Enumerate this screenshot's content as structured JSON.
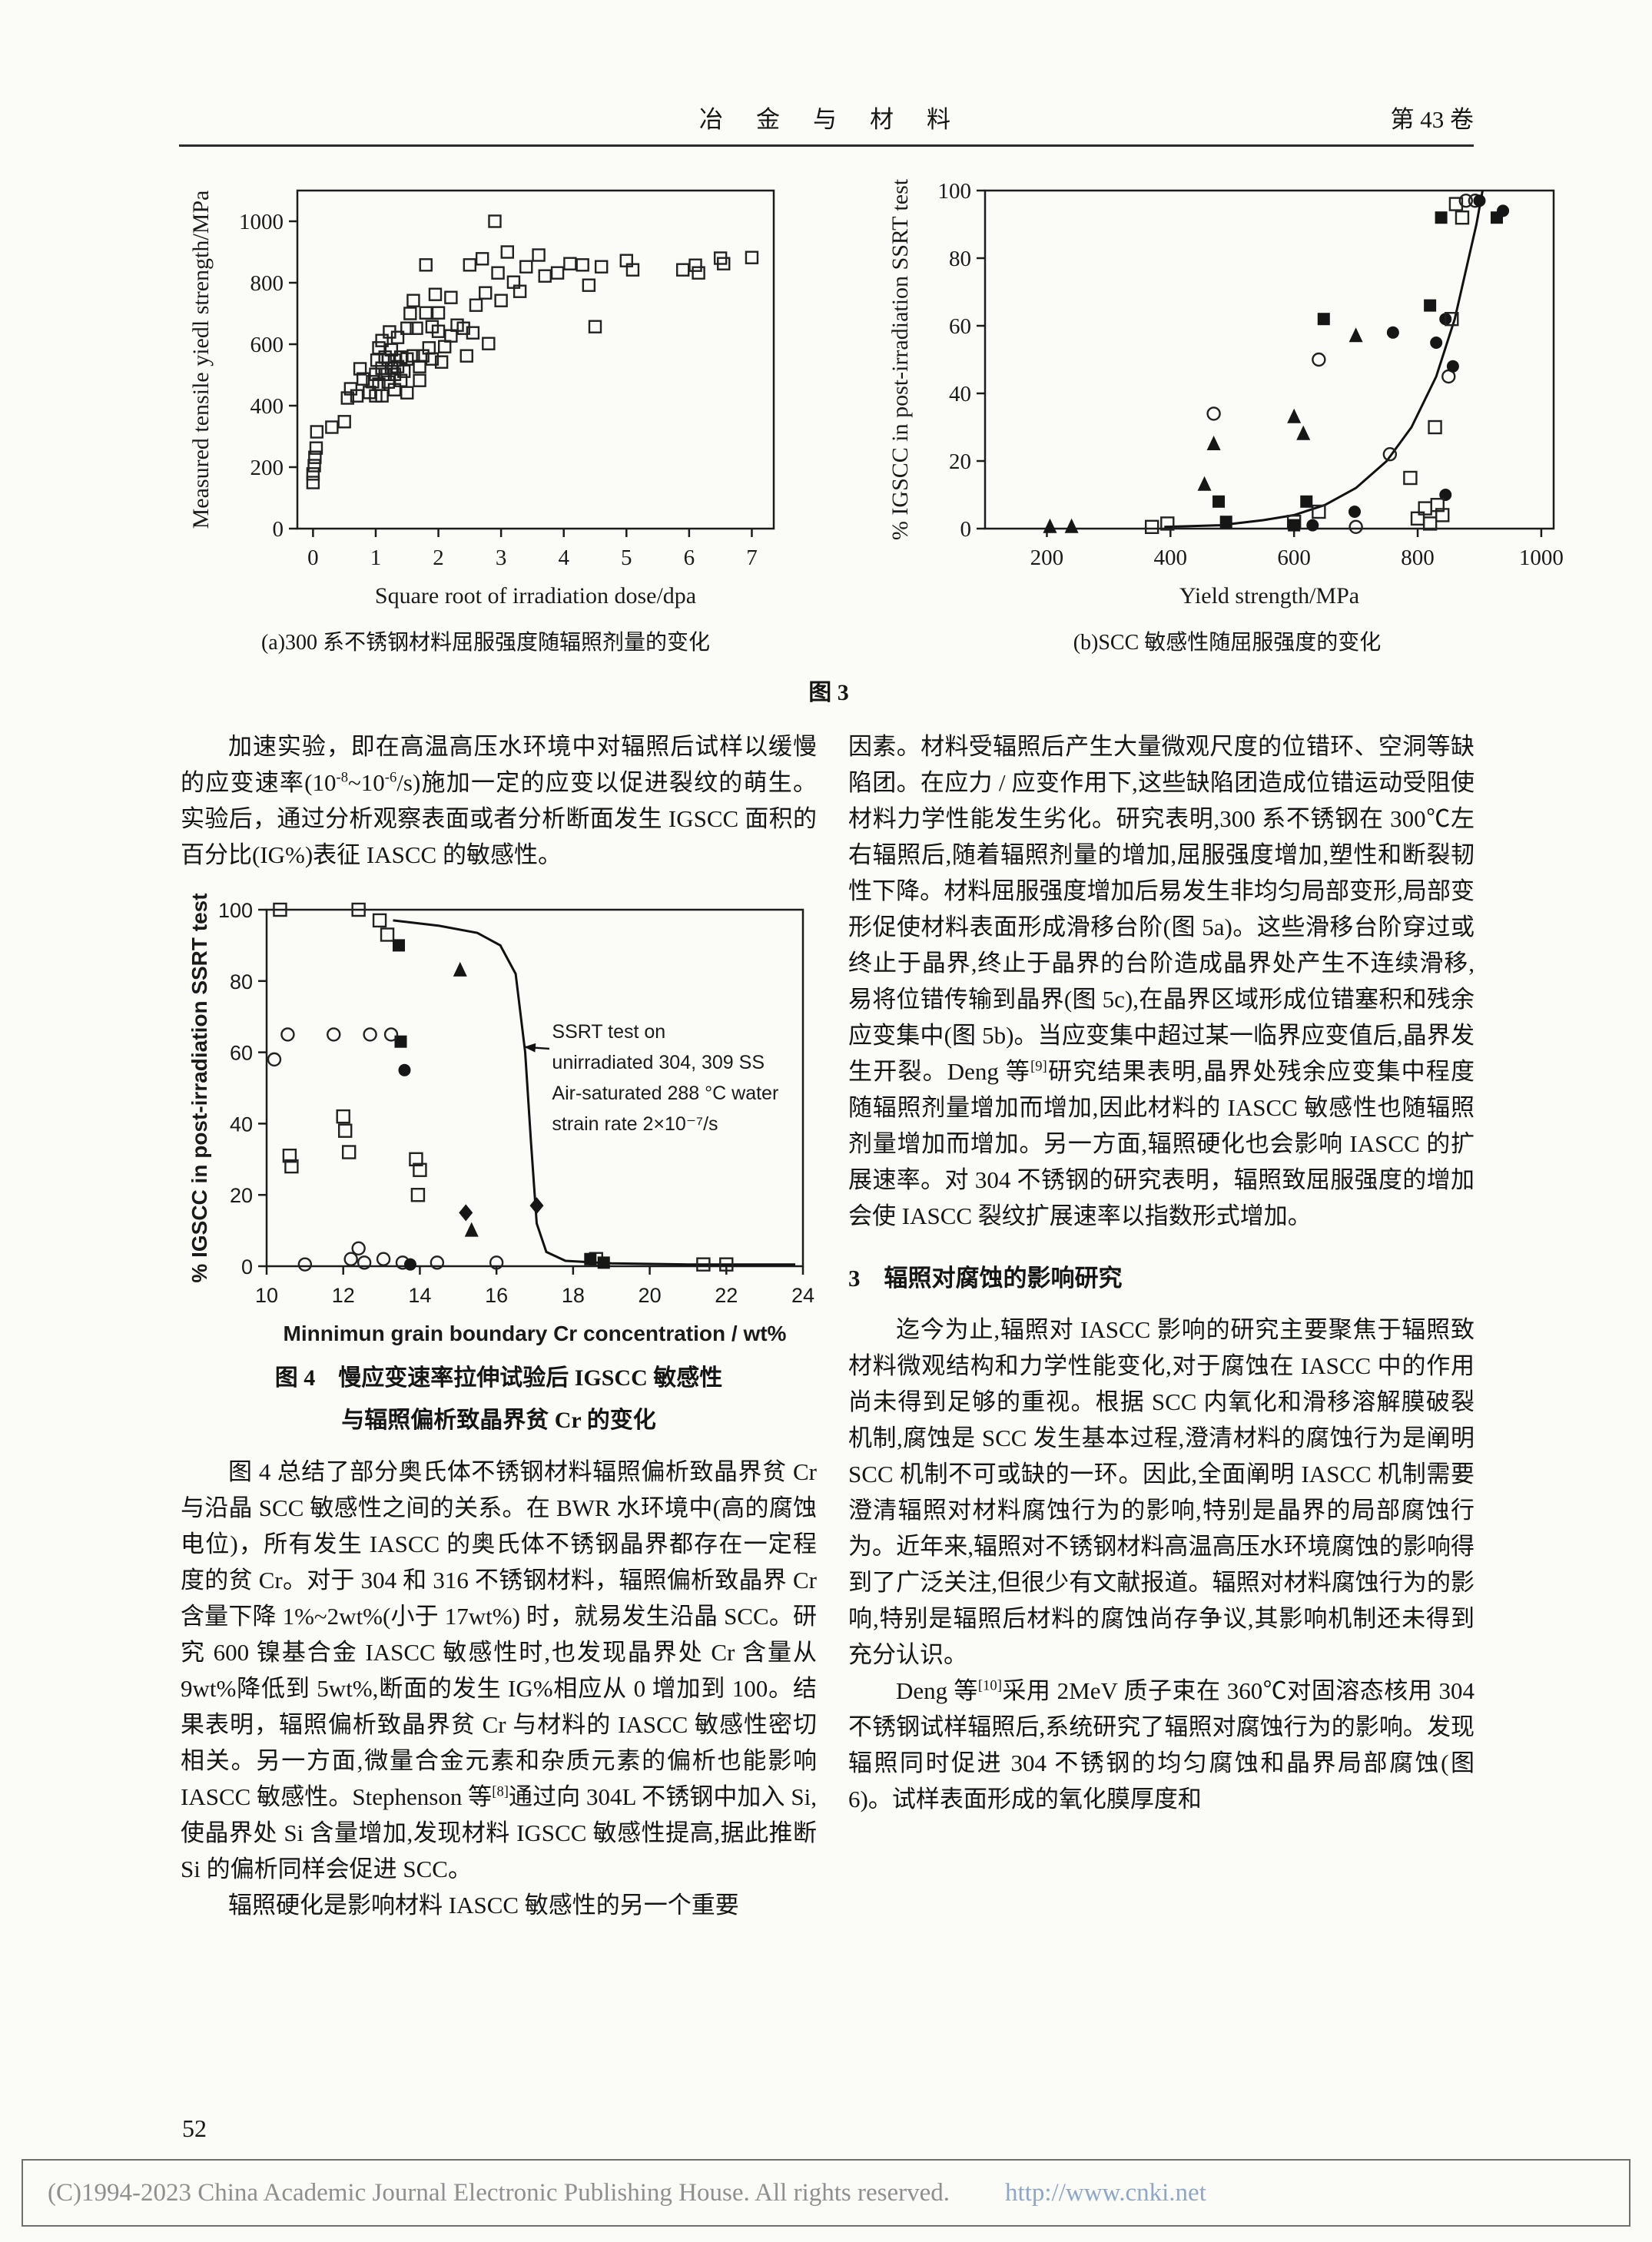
{
  "header": {
    "journal": "冶　金　与　材　料",
    "volume": "第 43 卷"
  },
  "figure3": {
    "caption_a": "(a)300 系不锈钢材料屈服强度随辐照剂量的变化",
    "caption_b": "(b)SCC 敏感性随屈服强度的变化",
    "label": "图 3"
  },
  "figure4": {
    "caption_line1": "图 4　慢应变速率拉伸试验后 IGSCC 敏感性",
    "caption_line2": "与辐照偏析致晶界贫 Cr 的变化"
  },
  "left_column": {
    "para1": "加速实验，即在高温高压水环境中对辐照后试样以缓慢的应变速率(10^{-8}~10^{-6}/s)施加一定的应变以促进裂纹的萌生。实验后，通过分析观察表面或者分析断面发生 IGSCC 面积的百分比(IG%)表征 IASCC 的敏感性。",
    "para2": "图 4 总结了部分奥氏体不锈钢材料辐照偏析致晶界贫 Cr 与沿晶 SCC 敏感性之间的关系。在 BWR 水环境中(高的腐蚀电位)，所有发生 IASCC 的奥氏体不锈钢晶界都存在一定程度的贫 Cr。对于 304 和 316 不锈钢材料，辐照偏析致晶界 Cr 含量下降 1%~2wt%(小于 17wt%) 时，就易发生沿晶 SCC。研究 600 镍基合金 IASCC 敏感性时,也发现晶界处 Cr 含量从 9wt%降低到 5wt%,断面的发生 IG%相应从 0 增加到 100。结果表明，辐照偏析致晶界贫 Cr 与材料的 IASCC 敏感性密切相关。另一方面,微量合金元素和杂质元素的偏析也能影响 IASCC 敏感性。Stephenson 等^{[8]}通过向 304L 不锈钢中加入 Si,使晶界处 Si 含量增加,发现材料 IGSCC 敏感性提高,据此推断 Si 的偏析同样会促进 SCC。",
    "para3": "辐照硬化是影响材料 IASCC 敏感性的另一个重要"
  },
  "right_column": {
    "para1": "因素。材料受辐照后产生大量微观尺度的位错环、空洞等缺陷团。在应力 / 应变作用下,这些缺陷团造成位错运动受阻使材料力学性能发生劣化。研究表明,300 系不锈钢在 300℃左右辐照后,随着辐照剂量的增加,屈服强度增加,塑性和断裂韧性下降。材料屈服强度增加后易发生非均匀局部变形,局部变形促使材料表面形成滑移台阶(图 5a)。这些滑移台阶穿过或终止于晶界,终止于晶界的台阶造成晶界处产生不连续滑移,易将位错传输到晶界(图 5c),在晶界区域形成位错塞积和残余应变集中(图 5b)。当应变集中超过某一临界应变值后,晶界发生开裂。Deng 等^{[9]}研究结果表明,晶界处残余应变集中程度随辐照剂量增加而增加,因此材料的 IASCC 敏感性也随辐照剂量增加而增加。另一方面,辐照硬化也会影响 IASCC 的扩展速率。对 304 不锈钢的研究表明，辐照致屈服强度的增加会使 IASCC 裂纹扩展速率以指数形式增加。",
    "section3_heading": "3　辐照对腐蚀的影响研究",
    "para2": "迄今为止,辐照对 IASCC 影响的研究主要聚焦于辐照致材料微观结构和力学性能变化,对于腐蚀在 IASCC 中的作用尚未得到足够的重视。根据 SCC 内氧化和滑移溶解膜破裂机制,腐蚀是 SCC 发生基本过程,澄清材料的腐蚀行为是阐明 SCC 机制不可或缺的一环。因此,全面阐明 IASCC 机制需要澄清辐照对材料腐蚀行为的影响,特别是晶界的局部腐蚀行为。近年来,辐照对不锈钢材料高温高压水环境腐蚀的影响得到了广泛关注,但很少有文献报道。辐照对材料腐蚀行为的影响,特别是辐照后材料的腐蚀尚存争议,其影响机制还未得到充分认识。",
    "para3": "Deng 等^{[10]}采用 2MeV 质子束在 360℃对固溶态核用 304 不锈钢试样辐照后,系统研究了辐照对腐蚀行为的影响。发现辐照同时促进 304 不锈钢的均匀腐蚀和晶界局部腐蚀(图 6)。试样表面形成的氧化膜厚度和"
  },
  "footer": {
    "page_number": "52",
    "copyright": "(C)1994-2023 China Academic Journal Electronic Publishing House. All rights reserved.",
    "url": "http://www.cnki.net"
  },
  "chart_data": [
    {
      "id": "fig3a",
      "type": "scatter",
      "title": "(a) 300 系不锈钢材料屈服强度随辐照剂量的变化",
      "xlabel": "Square root of irradiation dose/dpa",
      "ylabel": "Measured tensile yiedl strength/MPa",
      "xlim": [
        -0.25,
        7.35
      ],
      "ylim": [
        0,
        1100
      ],
      "xticks": [
        0,
        1,
        2,
        3,
        4,
        5,
        6,
        7
      ],
      "yticks": [
        0,
        200,
        400,
        600,
        800,
        1000
      ],
      "grid": false,
      "legend": "none",
      "font": "serif",
      "margin": [
        28,
        20,
        112,
        150
      ],
      "marker_size": 7.5,
      "series": [
        {
          "name": "300-series stainless steel yield strength",
          "marker": "open-square",
          "points": [
            [
              0,
              150
            ],
            [
              0,
              178
            ],
            [
              0.02,
              205
            ],
            [
              0.03,
              232
            ],
            [
              0.05,
              262
            ],
            [
              0.06,
              315
            ],
            [
              0.3,
              330
            ],
            [
              0.5,
              348
            ],
            [
              0.55,
              425
            ],
            [
              0.6,
              455
            ],
            [
              0.7,
              432
            ],
            [
              0.75,
              520
            ],
            [
              0.8,
              487
            ],
            [
              0.9,
              443
            ],
            [
              0.95,
              478
            ],
            [
              1,
              432
            ],
            [
              1,
              502
            ],
            [
              1.02,
              548
            ],
            [
              1.05,
              588
            ],
            [
              1.05,
              470
            ],
            [
              1.1,
              522
            ],
            [
              1.1,
              612
            ],
            [
              1.1,
              432
            ],
            [
              1.15,
              558
            ],
            [
              1.15,
              502
            ],
            [
              1.2,
              477
            ],
            [
              1.2,
              548
            ],
            [
              1.22,
              640
            ],
            [
              1.25,
              522
            ],
            [
              1.25,
              582
            ],
            [
              1.3,
              548
            ],
            [
              1.3,
              502
            ],
            [
              1.3,
              452
            ],
            [
              1.35,
              622
            ],
            [
              1.35,
              527
            ],
            [
              1.4,
              558
            ],
            [
              1.4,
              482
            ],
            [
              1.45,
              512
            ],
            [
              1.5,
              652
            ],
            [
              1.5,
              552
            ],
            [
              1.5,
              442
            ],
            [
              1.55,
              700
            ],
            [
              1.6,
              742
            ],
            [
              1.6,
              562
            ],
            [
              1.65,
              652
            ],
            [
              1.7,
              527
            ],
            [
              1.7,
              482
            ],
            [
              1.75,
              562
            ],
            [
              1.8,
              858
            ],
            [
              1.8,
              702
            ],
            [
              1.85,
              588
            ],
            [
              1.9,
              657
            ],
            [
              1.9,
              552
            ],
            [
              1.95,
              762
            ],
            [
              2,
              702
            ],
            [
              2,
              642
            ],
            [
              2.05,
              542
            ],
            [
              2.1,
              592
            ],
            [
              2.2,
              752
            ],
            [
              2.2,
              627
            ],
            [
              2.3,
              662
            ],
            [
              2.4,
              652
            ],
            [
              2.45,
              562
            ],
            [
              2.5,
              858
            ],
            [
              2.55,
              637
            ],
            [
              2.6,
              727
            ],
            [
              2.7,
              878
            ],
            [
              2.75,
              767
            ],
            [
              2.8,
              602
            ],
            [
              2.9,
              1000
            ],
            [
              2.95,
              832
            ],
            [
              3,
              742
            ],
            [
              3.1,
              900
            ],
            [
              3.2,
              802
            ],
            [
              3.3,
              772
            ],
            [
              3.4,
              852
            ],
            [
              3.6,
              890
            ],
            [
              3.7,
              822
            ],
            [
              3.9,
              832
            ],
            [
              4.1,
              862
            ],
            [
              4.3,
              858
            ],
            [
              4.4,
              792
            ],
            [
              4.5,
              657
            ],
            [
              4.6,
              852
            ],
            [
              5,
              872
            ],
            [
              5.1,
              842
            ],
            [
              5.9,
              842
            ],
            [
              6.1,
              857
            ],
            [
              6.15,
              832
            ],
            [
              6.5,
              880
            ],
            [
              6.55,
              862
            ],
            [
              7,
              882
            ]
          ]
        }
      ]
    },
    {
      "id": "fig3b",
      "type": "scatter",
      "title": "(b) SCC 敏感性随屈服强度的变化",
      "xlabel": "Yield strength/MPa",
      "ylabel": "% IGSCC in post-irradiation SSRT test",
      "xlim": [
        100,
        1020
      ],
      "ylim": [
        0,
        100
      ],
      "xticks": [
        200,
        400,
        600,
        800,
        1000
      ],
      "yticks": [
        0,
        20,
        40,
        60,
        80,
        100
      ],
      "grid": false,
      "legend": "none",
      "font": "serif",
      "margin": [
        28,
        25,
        112,
        135
      ],
      "marker_size": 8,
      "curve": [
        [
          390,
          0.5
        ],
        [
          480,
          1
        ],
        [
          550,
          2.5
        ],
        [
          600,
          4
        ],
        [
          650,
          7
        ],
        [
          700,
          12
        ],
        [
          750,
          20
        ],
        [
          790,
          30
        ],
        [
          830,
          45
        ],
        [
          860,
          62
        ],
        [
          880,
          78
        ],
        [
          895,
          90
        ],
        [
          905,
          100
        ]
      ],
      "series": [
        {
          "name": "filled triangles",
          "marker": "filled-triangle",
          "points": [
            [
              205,
              0.5
            ],
            [
              240,
              0.5
            ],
            [
              455,
              13
            ],
            [
              470,
              25
            ],
            [
              600,
              33
            ],
            [
              615,
              28
            ],
            [
              700,
              57
            ]
          ]
        },
        {
          "name": "open circles",
          "marker": "open-circle",
          "points": [
            [
              470,
              34
            ],
            [
              640,
              50
            ],
            [
              700,
              0.5
            ],
            [
              755,
              22
            ],
            [
              850,
              45
            ],
            [
              878,
              97
            ],
            [
              893,
              97
            ]
          ]
        },
        {
          "name": "filled circles",
          "marker": "filled-circle",
          "points": [
            [
              630,
              1
            ],
            [
              698,
              5
            ],
            [
              760,
              58
            ],
            [
              830,
              55
            ],
            [
              845,
              62
            ],
            [
              857,
              48
            ],
            [
              900,
              97
            ],
            [
              938,
              94
            ],
            [
              845,
              10
            ]
          ]
        },
        {
          "name": "open squares",
          "marker": "open-square",
          "points": [
            [
              370,
              0.5
            ],
            [
              395,
              1.5
            ],
            [
              600,
              2
            ],
            [
              640,
              5
            ],
            [
              788,
              15
            ],
            [
              800,
              3
            ],
            [
              812,
              6
            ],
            [
              820,
              1.5
            ],
            [
              828,
              30
            ],
            [
              832,
              7
            ],
            [
              840,
              4
            ],
            [
              855,
              62
            ],
            [
              862,
              96
            ],
            [
              872,
              92
            ]
          ]
        },
        {
          "name": "filled squares",
          "marker": "filled-square",
          "points": [
            [
              478,
              8
            ],
            [
              490,
              2
            ],
            [
              600,
              1
            ],
            [
              620,
              8
            ],
            [
              648,
              62
            ],
            [
              820,
              66
            ],
            [
              838,
              92
            ],
            [
              928,
              92
            ]
          ]
        }
      ]
    },
    {
      "id": "fig4",
      "type": "scatter",
      "title": "图 4 慢应变速率拉伸试验后 IGSCC 敏感性与辐照偏析致晶界贫 Cr 的变化",
      "xlabel": "Minnimun grain boundary Cr concentration / wt%",
      "ylabel": "% IGSCC in post-irradiation SSRT test",
      "xlim": [
        10,
        24
      ],
      "ylim": [
        0,
        100
      ],
      "xticks": [
        10,
        12,
        14,
        16,
        18,
        20,
        22,
        24
      ],
      "yticks": [
        0,
        20,
        40,
        60,
        80,
        100
      ],
      "grid": false,
      "legend": "none",
      "font": "sans",
      "margin": [
        22,
        18,
        114,
        112
      ],
      "marker_size": 8,
      "curve": [
        [
          13.3,
          97
        ],
        [
          14.5,
          95.5
        ],
        [
          15.5,
          93.5
        ],
        [
          16.1,
          90
        ],
        [
          16.5,
          82
        ],
        [
          16.75,
          60
        ],
        [
          16.9,
          35
        ],
        [
          17.05,
          12
        ],
        [
          17.3,
          4
        ],
        [
          17.8,
          1.5
        ],
        [
          19,
          0.8
        ],
        [
          21,
          0.5
        ],
        [
          23.8,
          0.5
        ]
      ],
      "annotation": {
        "x": 17.45,
        "y": 64,
        "line_gap": 40,
        "lines": [
          "SSRT test on",
          "unirradiated 304, 309 SS",
          "Air-saturated 288 °C water",
          "strain rate 2×10⁻⁷/s"
        ],
        "arrow": {
          "from": [
            17.38,
            61
          ],
          "to": [
            16.72,
            61.5
          ]
        }
      },
      "series": [
        {
          "name": "open squares",
          "marker": "open-square",
          "points": [
            [
              10.35,
              100
            ],
            [
              12.4,
              100
            ],
            [
              12.95,
              97
            ],
            [
              13.15,
              93
            ],
            [
              10.6,
              31
            ],
            [
              10.65,
              28
            ],
            [
              12,
              42
            ],
            [
              12.05,
              38
            ],
            [
              12.15,
              32
            ],
            [
              13.9,
              30
            ],
            [
              14,
              27
            ],
            [
              13.95,
              20
            ],
            [
              18.6,
              2
            ],
            [
              21.4,
              0.5
            ],
            [
              22,
              0.5
            ]
          ]
        },
        {
          "name": "filled squares",
          "marker": "filled-square",
          "points": [
            [
              13.45,
              90
            ],
            [
              13.5,
              63
            ],
            [
              18.45,
              2
            ],
            [
              18.8,
              1
            ]
          ]
        },
        {
          "name": "open circles",
          "marker": "open-circle",
          "points": [
            [
              10.2,
              58
            ],
            [
              10.55,
              65
            ],
            [
              11.75,
              65
            ],
            [
              12.7,
              65
            ],
            [
              13.25,
              65
            ],
            [
              12.2,
              2
            ],
            [
              12.4,
              5
            ],
            [
              12.55,
              1
            ],
            [
              13.05,
              2
            ],
            [
              13.55,
              1
            ],
            [
              14.45,
              1
            ],
            [
              16,
              1
            ],
            [
              11,
              0.5
            ]
          ]
        },
        {
          "name": "filled circles",
          "marker": "filled-circle",
          "points": [
            [
              13.6,
              55
            ],
            [
              13.75,
              0.5
            ]
          ]
        },
        {
          "name": "filled triangles",
          "marker": "filled-triangle",
          "points": [
            [
              15.05,
              83
            ],
            [
              15.35,
              10
            ]
          ]
        },
        {
          "name": "filled diamonds",
          "marker": "filled-diamond",
          "points": [
            [
              15.2,
              15
            ],
            [
              17.05,
              17
            ]
          ]
        }
      ]
    }
  ]
}
